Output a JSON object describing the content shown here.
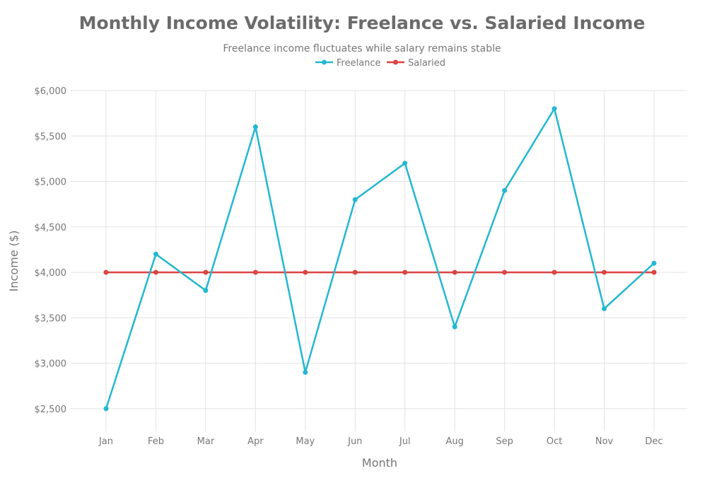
{
  "chart_data": {
    "type": "line",
    "title": "Monthly Income Volatility: Freelance vs. Salaried Income",
    "subtitle": "Freelance income fluctuates while salary remains stable",
    "xlabel": "Month",
    "ylabel": "Income ($)",
    "categories": [
      "Jan",
      "Feb",
      "Mar",
      "Apr",
      "May",
      "Jun",
      "Jul",
      "Aug",
      "Sep",
      "Oct",
      "Nov",
      "Dec"
    ],
    "series": [
      {
        "name": "Freelance",
        "color": "#22b8cf",
        "values": [
          2500,
          4200,
          3800,
          5600,
          2900,
          4800,
          5200,
          3400,
          4900,
          5800,
          3600,
          4100
        ]
      },
      {
        "name": "Salaried",
        "color": "#dc4343",
        "values": [
          4000,
          4000,
          4000,
          4000,
          4000,
          4000,
          4000,
          4000,
          4000,
          4000,
          4000,
          4000
        ]
      }
    ],
    "yticks": [
      2500,
      3000,
      3500,
      4000,
      4500,
      5000,
      5500,
      6000
    ],
    "ytick_labels": [
      "$2,500",
      "$3,000",
      "$3,500",
      "$4,000",
      "$4,500",
      "$5,000",
      "$5,500",
      "$6,000"
    ],
    "ylim": [
      2250,
      6000
    ],
    "grid": true,
    "legend_position": "top-center"
  }
}
